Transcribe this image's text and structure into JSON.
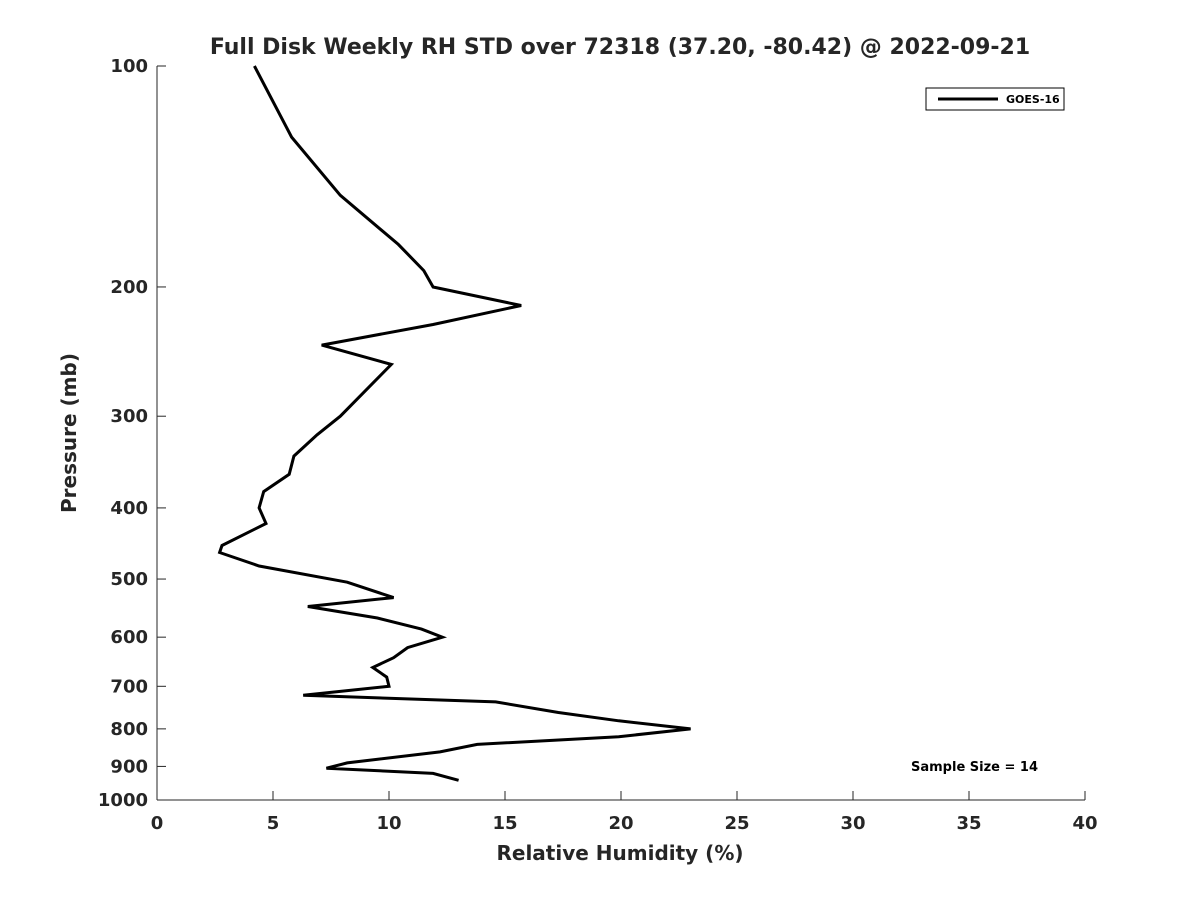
{
  "chart_data": {
    "type": "line",
    "title": "Full Disk Weekly RH STD over 72318 (37.20, -80.42) @ 2022-09-21",
    "xlabel": "Relative Humidity (%)",
    "ylabel": "Pressure (mb)",
    "xlim": [
      0,
      40
    ],
    "ylim": [
      100,
      1000
    ],
    "yscale": "log",
    "y_reversed": true,
    "grid": false,
    "x_ticks": [
      0,
      5,
      10,
      15,
      20,
      25,
      30,
      35,
      40
    ],
    "y_ticks": [
      100,
      200,
      300,
      400,
      500,
      600,
      700,
      800,
      900,
      1000
    ],
    "legend_position": "top-right",
    "series": [
      {
        "name": "GOES-16",
        "color": "#000000",
        "points": [
          [
            4.2,
            100
          ],
          [
            5.8,
            125
          ],
          [
            7.9,
            150
          ],
          [
            10.4,
            175
          ],
          [
            11.5,
            190
          ],
          [
            11.9,
            200
          ],
          [
            15.7,
            212
          ],
          [
            11.9,
            225
          ],
          [
            7.1,
            240
          ],
          [
            10.1,
            255
          ],
          [
            7.9,
            300
          ],
          [
            6.9,
            318
          ],
          [
            5.9,
            340
          ],
          [
            5.7,
            360
          ],
          [
            4.6,
            380
          ],
          [
            4.4,
            400
          ],
          [
            4.7,
            420
          ],
          [
            2.8,
            450
          ],
          [
            2.7,
            460
          ],
          [
            4.4,
            480
          ],
          [
            8.2,
            505
          ],
          [
            10.2,
            530
          ],
          [
            6.5,
            545
          ],
          [
            9.5,
            565
          ],
          [
            11.4,
            585
          ],
          [
            12.3,
            600
          ],
          [
            10.8,
            620
          ],
          [
            10.2,
            640
          ],
          [
            9.3,
            660
          ],
          [
            9.9,
            680
          ],
          [
            10.0,
            700
          ],
          [
            6.3,
            720
          ],
          [
            14.6,
            735
          ],
          [
            17.3,
            760
          ],
          [
            19.9,
            780
          ],
          [
            23.0,
            800
          ],
          [
            19.9,
            820
          ],
          [
            13.8,
            840
          ],
          [
            12.2,
            860
          ],
          [
            8.2,
            890
          ],
          [
            7.3,
            905
          ],
          [
            11.9,
            920
          ],
          [
            13.0,
            940
          ]
        ]
      }
    ],
    "annotations": [
      {
        "text": "Sample Size = 14"
      }
    ]
  }
}
